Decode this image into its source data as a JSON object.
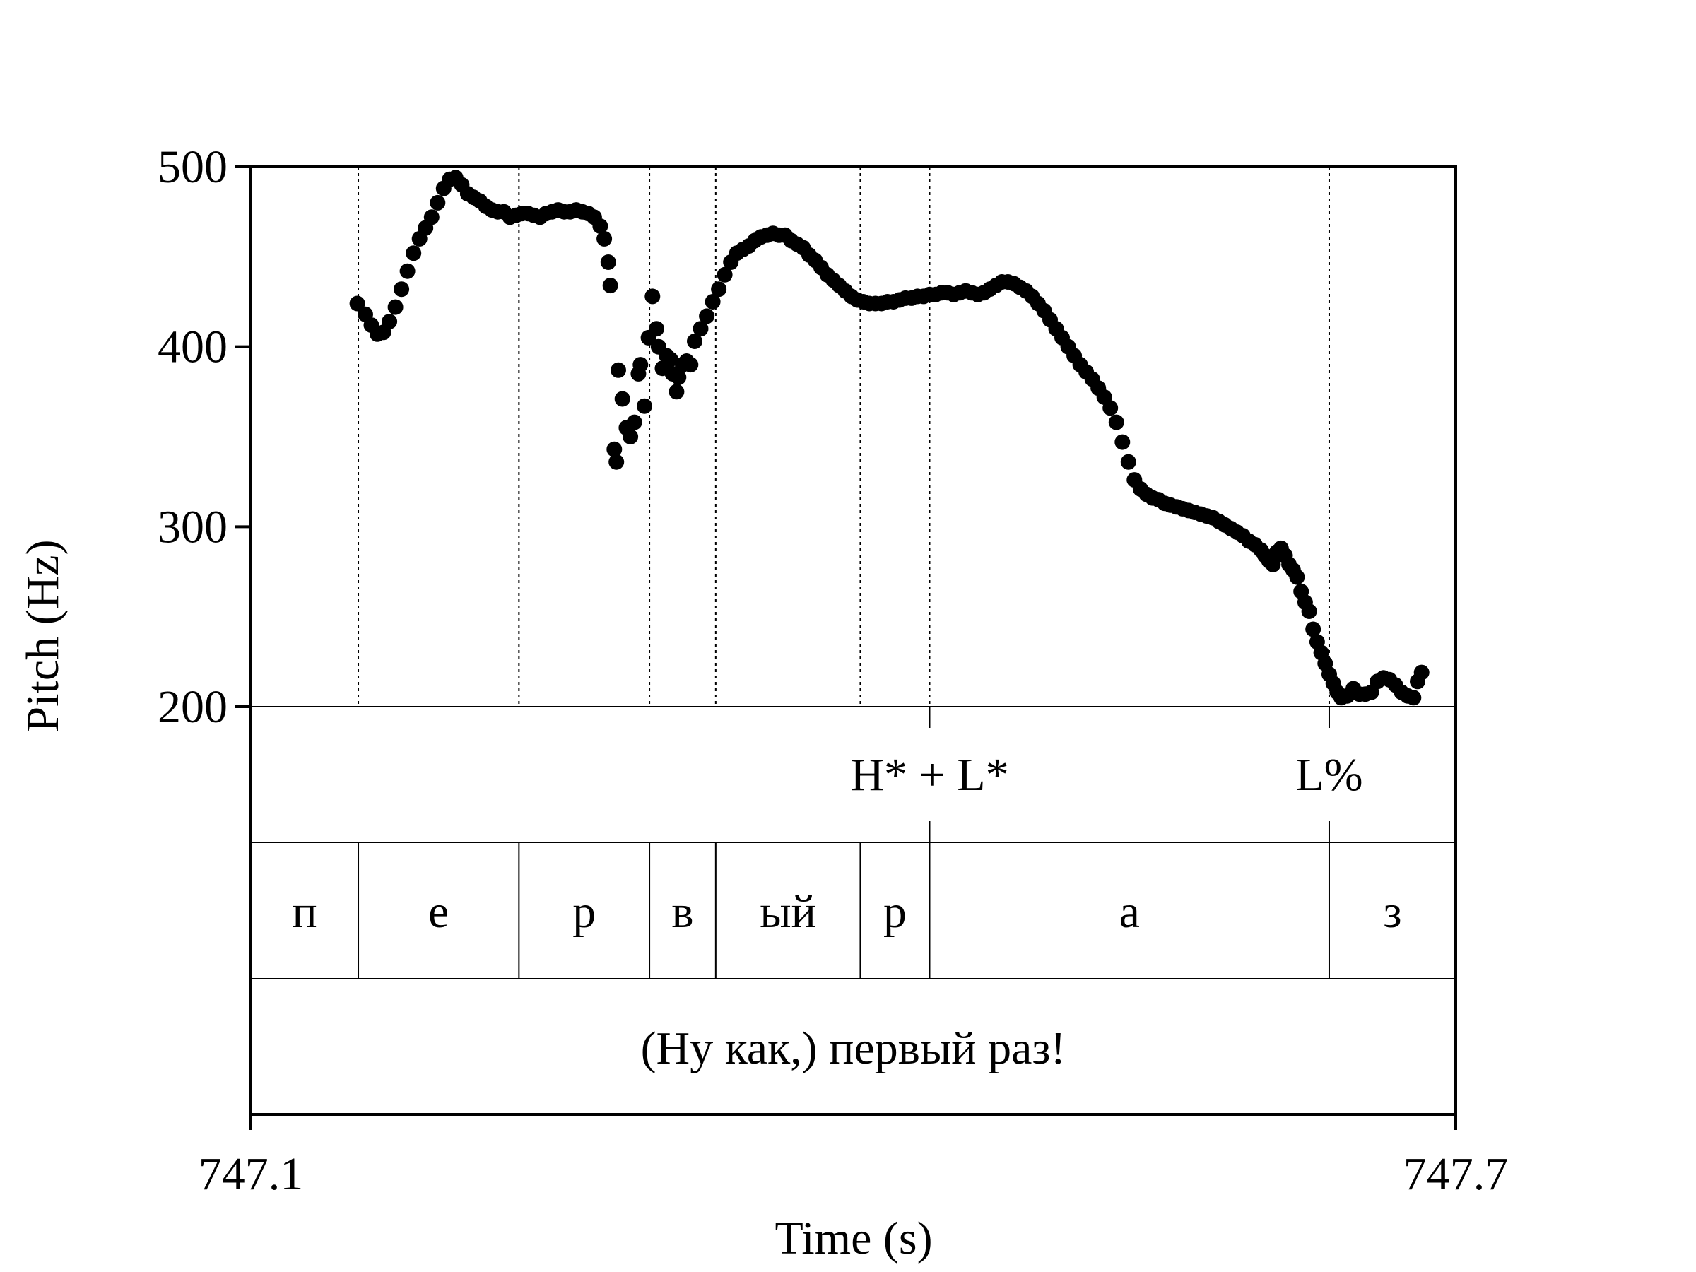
{
  "chart_data": {
    "type": "scatter",
    "xlabel": "Time (s)",
    "ylabel": "Pitch (Hz)",
    "xlim": [
      747.1,
      747.7
    ],
    "ylim": [
      200,
      500
    ],
    "x_tick_labels": [
      "747.1",
      "747.7"
    ],
    "y_ticks": [
      200,
      300,
      400,
      500
    ],
    "y_tick_labels": [
      "200",
      "300",
      "400",
      "500"
    ],
    "series": [
      {
        "name": "pitch",
        "points": [
          [
            747.153,
            424
          ],
          [
            747.157,
            418
          ],
          [
            747.16,
            412
          ],
          [
            747.163,
            407
          ],
          [
            747.166,
            408
          ],
          [
            747.169,
            414
          ],
          [
            747.172,
            422
          ],
          [
            747.175,
            432
          ],
          [
            747.178,
            442
          ],
          [
            747.181,
            452
          ],
          [
            747.184,
            460
          ],
          [
            747.187,
            466
          ],
          [
            747.19,
            472
          ],
          [
            747.193,
            480
          ],
          [
            747.196,
            488
          ],
          [
            747.199,
            493
          ],
          [
            747.202,
            494
          ],
          [
            747.205,
            490
          ],
          [
            747.208,
            485
          ],
          [
            747.211,
            483
          ],
          [
            747.214,
            481
          ],
          [
            747.217,
            478
          ],
          [
            747.22,
            476
          ],
          [
            747.223,
            475
          ],
          [
            747.226,
            475
          ],
          [
            747.229,
            472
          ],
          [
            747.232,
            473
          ],
          [
            747.235,
            474
          ],
          [
            747.238,
            474
          ],
          [
            747.241,
            473
          ],
          [
            747.244,
            472
          ],
          [
            747.247,
            474
          ],
          [
            747.25,
            475
          ],
          [
            747.253,
            476
          ],
          [
            747.256,
            475
          ],
          [
            747.259,
            475
          ],
          [
            747.262,
            476
          ],
          [
            747.265,
            475
          ],
          [
            747.268,
            474
          ],
          [
            747.271,
            472
          ],
          [
            747.274,
            467
          ],
          [
            747.276,
            460
          ],
          [
            747.278,
            447
          ],
          [
            747.279,
            434
          ],
          [
            747.281,
            343
          ],
          [
            747.282,
            336
          ],
          [
            747.283,
            387
          ],
          [
            747.285,
            371
          ],
          [
            747.287,
            355
          ],
          [
            747.289,
            350
          ],
          [
            747.291,
            358
          ],
          [
            747.293,
            385
          ],
          [
            747.294,
            390
          ],
          [
            747.296,
            367
          ],
          [
            747.298,
            405
          ],
          [
            747.3,
            428
          ],
          [
            747.302,
            410
          ],
          [
            747.303,
            400
          ],
          [
            747.305,
            388
          ],
          [
            747.307,
            395
          ],
          [
            747.309,
            393
          ],
          [
            747.31,
            385
          ],
          [
            747.312,
            375
          ],
          [
            747.313,
            383
          ],
          [
            747.315,
            390
          ],
          [
            747.317,
            392
          ],
          [
            747.319,
            390
          ],
          [
            747.321,
            403
          ],
          [
            747.324,
            410
          ],
          [
            747.327,
            417
          ],
          [
            747.33,
            425
          ],
          [
            747.333,
            432
          ],
          [
            747.336,
            440
          ],
          [
            747.339,
            447
          ],
          [
            747.342,
            452
          ],
          [
            747.345,
            454
          ],
          [
            747.348,
            456
          ],
          [
            747.351,
            459
          ],
          [
            747.354,
            461
          ],
          [
            747.357,
            462
          ],
          [
            747.36,
            463
          ],
          [
            747.363,
            462
          ],
          [
            747.366,
            462
          ],
          [
            747.369,
            459
          ],
          [
            747.372,
            457
          ],
          [
            747.375,
            455
          ],
          [
            747.378,
            451
          ],
          [
            747.381,
            448
          ],
          [
            747.384,
            444
          ],
          [
            747.387,
            440
          ],
          [
            747.39,
            437
          ],
          [
            747.393,
            434
          ],
          [
            747.396,
            431
          ],
          [
            747.399,
            428
          ],
          [
            747.402,
            426
          ],
          [
            747.405,
            425
          ],
          [
            747.408,
            424
          ],
          [
            747.411,
            424
          ],
          [
            747.414,
            424
          ],
          [
            747.417,
            425
          ],
          [
            747.42,
            425
          ],
          [
            747.423,
            426
          ],
          [
            747.426,
            427
          ],
          [
            747.429,
            427
          ],
          [
            747.432,
            428
          ],
          [
            747.435,
            428
          ],
          [
            747.438,
            429
          ],
          [
            747.441,
            429
          ],
          [
            747.444,
            430
          ],
          [
            747.447,
            430
          ],
          [
            747.45,
            429
          ],
          [
            747.453,
            430
          ],
          [
            747.456,
            431
          ],
          [
            747.459,
            430
          ],
          [
            747.462,
            429
          ],
          [
            747.465,
            430
          ],
          [
            747.468,
            432
          ],
          [
            747.471,
            434
          ],
          [
            747.474,
            436
          ],
          [
            747.477,
            436
          ],
          [
            747.48,
            435
          ],
          [
            747.483,
            433
          ],
          [
            747.486,
            431
          ],
          [
            747.489,
            428
          ],
          [
            747.492,
            424
          ],
          [
            747.495,
            420
          ],
          [
            747.498,
            415
          ],
          [
            747.501,
            410
          ],
          [
            747.504,
            405
          ],
          [
            747.507,
            400
          ],
          [
            747.51,
            395
          ],
          [
            747.513,
            390
          ],
          [
            747.516,
            386
          ],
          [
            747.519,
            382
          ],
          [
            747.522,
            377
          ],
          [
            747.525,
            372
          ],
          [
            747.528,
            366
          ],
          [
            747.531,
            358
          ],
          [
            747.534,
            347
          ],
          [
            747.537,
            336
          ],
          [
            747.54,
            326
          ],
          [
            747.543,
            321
          ],
          [
            747.546,
            318
          ],
          [
            747.549,
            316
          ],
          [
            747.552,
            315
          ],
          [
            747.555,
            313
          ],
          [
            747.558,
            312
          ],
          [
            747.561,
            311
          ],
          [
            747.564,
            310
          ],
          [
            747.567,
            309
          ],
          [
            747.57,
            308
          ],
          [
            747.573,
            307
          ],
          [
            747.576,
            306
          ],
          [
            747.579,
            305
          ],
          [
            747.582,
            303
          ],
          [
            747.585,
            301
          ],
          [
            747.588,
            299
          ],
          [
            747.591,
            297
          ],
          [
            747.594,
            295
          ],
          [
            747.597,
            292
          ],
          [
            747.6,
            290
          ],
          [
            747.603,
            287
          ],
          [
            747.605,
            284
          ],
          [
            747.607,
            281
          ],
          [
            747.609,
            279
          ],
          [
            747.611,
            286
          ],
          [
            747.613,
            288
          ],
          [
            747.615,
            284
          ],
          [
            747.617,
            279
          ],
          [
            747.619,
            276
          ],
          [
            747.621,
            272
          ],
          [
            747.623,
            264
          ],
          [
            747.625,
            258
          ],
          [
            747.627,
            253
          ],
          [
            747.629,
            243
          ],
          [
            747.631,
            236
          ],
          [
            747.633,
            230
          ],
          [
            747.635,
            224
          ],
          [
            747.637,
            218
          ],
          [
            747.639,
            213
          ],
          [
            747.641,
            208
          ],
          [
            747.643,
            205
          ],
          [
            747.646,
            206
          ],
          [
            747.649,
            210
          ],
          [
            747.652,
            207
          ],
          [
            747.655,
            207
          ],
          [
            747.658,
            208
          ],
          [
            747.661,
            214
          ],
          [
            747.664,
            216
          ],
          [
            747.667,
            215
          ],
          [
            747.67,
            212
          ],
          [
            747.673,
            208
          ],
          [
            747.676,
            206
          ],
          [
            747.679,
            205
          ],
          [
            747.681,
            214
          ],
          [
            747.683,
            219
          ]
        ]
      }
    ],
    "boundaries": [
      747.1535,
      747.2335,
      747.2985,
      747.3315,
      747.4035,
      747.438,
      747.637
    ],
    "tone_tier": [
      {
        "label": "H* + L*",
        "time": 747.438
      },
      {
        "label": "L%",
        "time": 747.637
      }
    ],
    "segment_tier": [
      {
        "label": "п",
        "start": 747.1,
        "end": 747.1535
      },
      {
        "label": "е",
        "start": 747.1535,
        "end": 747.2335
      },
      {
        "label": "р",
        "start": 747.2335,
        "end": 747.2985
      },
      {
        "label": "в",
        "start": 747.2985,
        "end": 747.3315
      },
      {
        "label": "ый",
        "start": 747.3315,
        "end": 747.4035
      },
      {
        "label": "р",
        "start": 747.4035,
        "end": 747.438
      },
      {
        "label": "а",
        "start": 747.438,
        "end": 747.637
      },
      {
        "label": "з",
        "start": 747.637,
        "end": 747.7
      }
    ],
    "utterance_tier": {
      "label": "(Ну как,) первый раз!"
    }
  },
  "colors": {
    "ink": "#000000",
    "background": "#ffffff"
  }
}
